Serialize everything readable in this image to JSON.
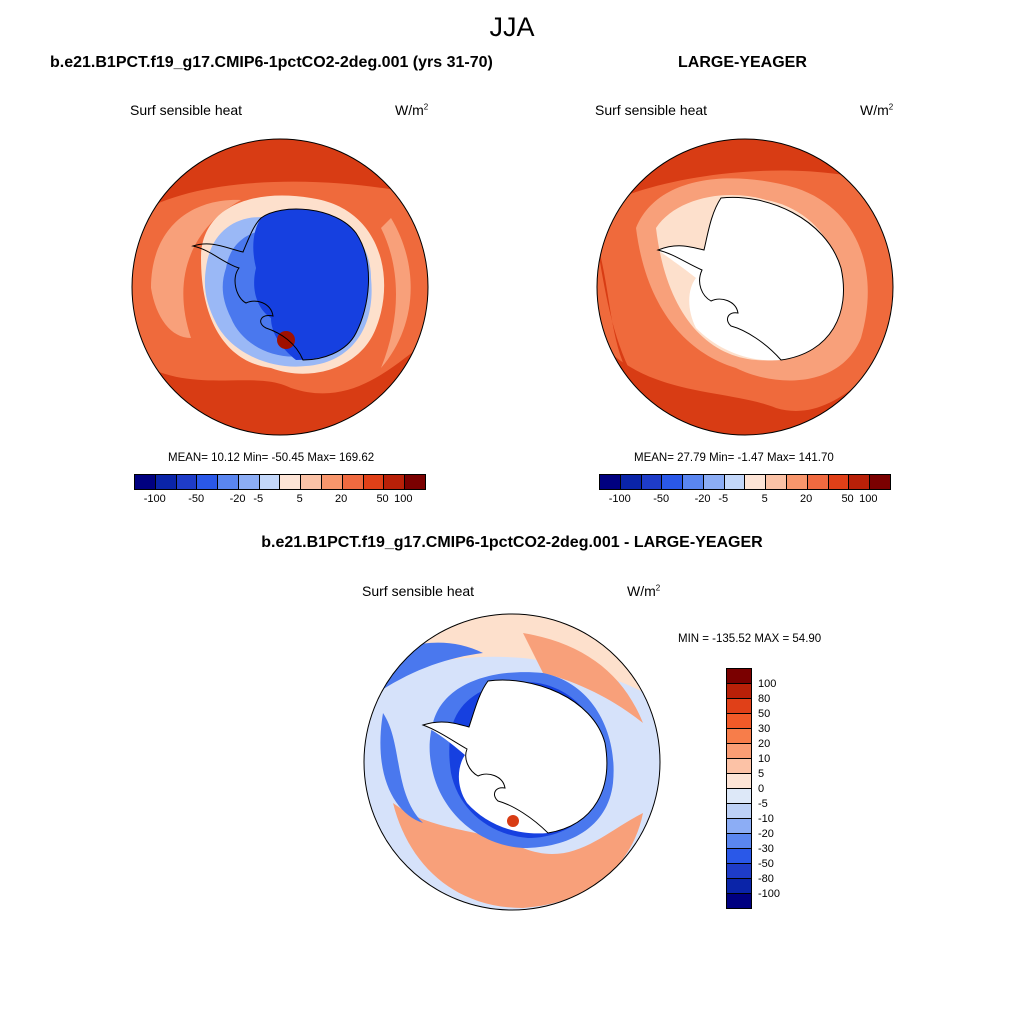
{
  "title": "JJA",
  "panels": {
    "left": {
      "title": "b.e21.B1PCT.f19_g17.CMIP6-1pctCO2-2deg.001 (yrs 31-70)",
      "variable": "Surf sensible heat",
      "units_base": "W/m",
      "units_sup": "2",
      "stats": "MEAN=  10.12  Min= -50.45  Max= 169.62"
    },
    "right": {
      "title": "LARGE-YEAGER",
      "variable": "Surf sensible heat",
      "units_base": "W/m",
      "units_sup": "2",
      "stats": "MEAN=  27.79  Min=  -1.47  Max= 141.70"
    },
    "diff": {
      "title": "b.e21.B1PCT.f19_g17.CMIP6-1pctCO2-2deg.001 - LARGE-YEAGER",
      "variable": "Surf sensible heat",
      "units_base": "W/m",
      "units_sup": "2",
      "stats": "MIN = -135.52 MAX =  54.90"
    }
  },
  "colorbar_top": {
    "colors": [
      "#000080",
      "#0a24a8",
      "#1e3cc8",
      "#2a58e8",
      "#5a86f0",
      "#8cadf5",
      "#c3d7fa",
      "#fde4d6",
      "#fbc2a6",
      "#f8966c",
      "#f06a40",
      "#e04018",
      "#b82008",
      "#7a0000"
    ],
    "labels": [
      "-100",
      "-50",
      "-20",
      "-5",
      "5",
      "20",
      "50",
      "100"
    ]
  },
  "colorbar_diff": {
    "colors": [
      "#7a0000",
      "#b82008",
      "#e04018",
      "#f25a28",
      "#f77d4a",
      "#fa9d74",
      "#fcc2a6",
      "#fde4d6",
      "#dde8f8",
      "#bcd0f6",
      "#8cadf5",
      "#5a86f0",
      "#2a58e8",
      "#1e3cc8",
      "#0a24a8",
      "#000080"
    ],
    "labels": [
      "100",
      "80",
      "50",
      "30",
      "20",
      "10",
      "5",
      "0",
      "-5",
      "-10",
      "-20",
      "-30",
      "-50",
      "-80",
      "-100"
    ]
  },
  "map_colors": {
    "warm_dark": "#d83c14",
    "warm_mid": "#ef6a3c",
    "warm_light": "#f8a07a",
    "warm_pale": "#fde0cc",
    "cool_dark": "#1640e0",
    "cool_mid": "#4a78ee",
    "cool_light": "#9ab8f6",
    "cool_pale": "#d6e2fa"
  }
}
